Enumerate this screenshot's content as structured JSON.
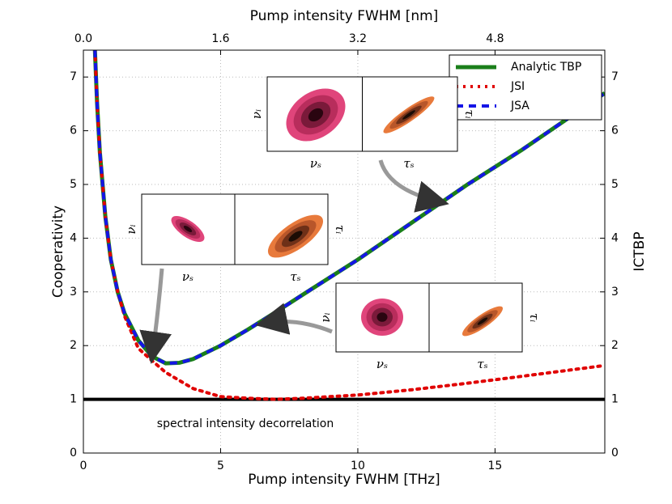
{
  "chart_data": {
    "type": "line",
    "xlabel": "Pump intensity FWHM [THz]",
    "ylabel": "Cooperativity",
    "x2label": "Pump intensity FWHM [nm]",
    "y2label": "ICTBP",
    "xlim": [
      0,
      19
    ],
    "xticks": [
      0,
      5,
      10,
      15
    ],
    "x2lim": [
      0,
      6.08
    ],
    "x2ticks": [
      {
        "value": 0,
        "label": "0.0"
      },
      1.6,
      3.2,
      4.8
    ],
    "ylim": [
      0,
      7.5
    ],
    "yticks": [
      0,
      1,
      2,
      3,
      4,
      5,
      6,
      7
    ],
    "y2lim": [
      0,
      7.5
    ],
    "y2ticks": [
      0,
      1,
      2,
      3,
      4,
      5,
      6,
      7
    ],
    "grid": true,
    "legend": "upper right",
    "hline": 1,
    "annotation": "spectral intensity decorrelation",
    "series": [
      {
        "name": "Analytic TBP",
        "color": "#1a7f1a",
        "x": [
          0.42,
          0.5,
          0.6,
          0.8,
          1,
          1.25,
          1.5,
          2,
          2.5,
          3,
          3.5,
          4,
          5,
          6,
          7,
          8,
          10,
          12,
          14,
          16,
          19
        ],
        "values": [
          7.5,
          6.5,
          5.6,
          4.4,
          3.6,
          3.0,
          2.6,
          2.1,
          1.8,
          1.67,
          1.68,
          1.75,
          2.0,
          2.3,
          2.62,
          2.95,
          3.6,
          4.3,
          5.0,
          5.65,
          6.7
        ]
      },
      {
        "name": "JSI",
        "color": "#e00000",
        "x": [
          0.42,
          0.5,
          0.6,
          0.8,
          1,
          1.25,
          1.5,
          2,
          2.5,
          3,
          4,
          5,
          6,
          7,
          8,
          10,
          12,
          14,
          16,
          19
        ],
        "values": [
          7.5,
          6.5,
          5.6,
          4.4,
          3.6,
          3.0,
          2.55,
          1.95,
          1.72,
          1.5,
          1.2,
          1.05,
          1.02,
          1.0,
          1.02,
          1.08,
          1.18,
          1.3,
          1.43,
          1.63
        ]
      },
      {
        "name": "JSA",
        "color": "#1515e6",
        "x": [
          0.42,
          0.5,
          0.6,
          0.8,
          1,
          1.25,
          1.5,
          2,
          2.5,
          3,
          3.5,
          4,
          5,
          6,
          7,
          8,
          10,
          12,
          14,
          16,
          19
        ],
        "values": [
          7.5,
          6.5,
          5.6,
          4.4,
          3.6,
          3.0,
          2.6,
          2.1,
          1.8,
          1.67,
          1.68,
          1.75,
          2.0,
          2.3,
          2.62,
          2.95,
          3.6,
          4.3,
          5.0,
          5.65,
          6.7
        ]
      }
    ],
    "insets": [
      {
        "y_left": "νᵢ",
        "x_left": "νₛ",
        "x_right": "τₛ",
        "y_right": "τᵢ"
      },
      {
        "y_left": "νᵢ",
        "x_left": "νₛ",
        "x_right": "τₛ",
        "y_right": "τᵢ"
      },
      {
        "y_left": "νᵢ",
        "x_left": "νₛ",
        "x_right": "τₛ",
        "y_right": "τᵢ"
      }
    ]
  }
}
